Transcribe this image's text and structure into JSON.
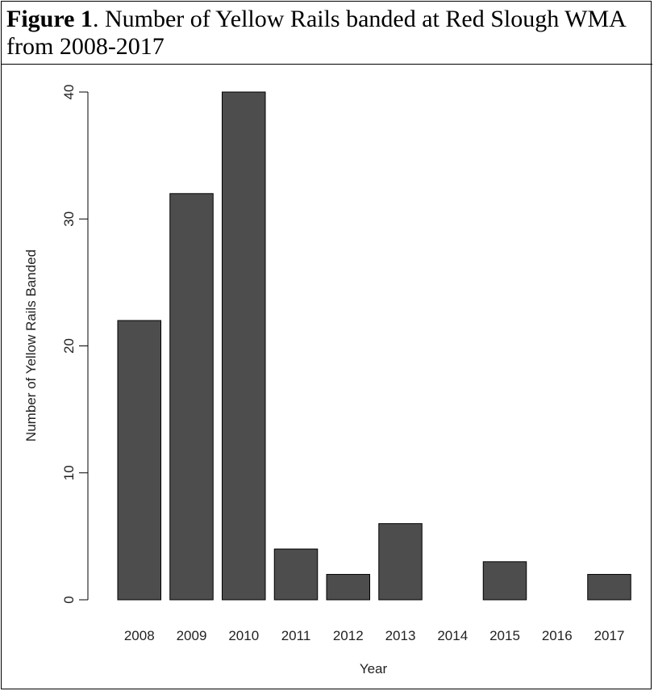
{
  "caption": {
    "label": "Figure 1",
    "text": ". Number of Yellow Rails banded at Red Slough WMA from 2008-2017"
  },
  "chart_data": {
    "type": "bar",
    "categories": [
      "2008",
      "2009",
      "2010",
      "2011",
      "2012",
      "2013",
      "2014",
      "2015",
      "2016",
      "2017"
    ],
    "values": [
      22,
      32,
      40,
      4,
      2,
      6,
      0,
      3,
      0,
      2
    ],
    "title": "",
    "xlabel": "Year",
    "ylabel": "Number of Yellow Rails Banded",
    "ylim": [
      0,
      40
    ],
    "yticks": [
      "0",
      "10",
      "20",
      "30",
      "40"
    ],
    "grid": false,
    "legend": "none",
    "colors": {
      "bar_fill": "#4d4d4d",
      "bar_stroke": "#000000",
      "axis": "#000000"
    }
  }
}
